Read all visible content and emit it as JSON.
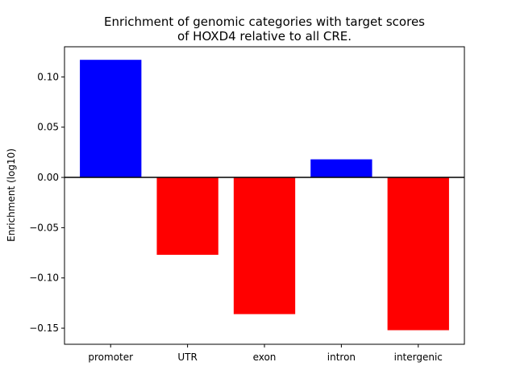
{
  "chart_data": {
    "type": "bar",
    "title_lines": [
      "Enrichment of genomic categories with target scores",
      "of HOXD4 relative to all CRE."
    ],
    "xlabel": "",
    "ylabel": "Enrichment (log10)",
    "categories": [
      "promoter",
      "UTR",
      "exon",
      "intron",
      "intergenic"
    ],
    "values": [
      0.117,
      -0.077,
      -0.136,
      0.018,
      -0.152
    ],
    "ylim": [
      -0.166,
      0.13
    ],
    "yticks": [
      0.1,
      0.05,
      0.0,
      -0.05,
      -0.1,
      -0.15
    ],
    "ytick_labels": [
      "0.10",
      "0.05",
      "0.00",
      "−0.05",
      "−0.10",
      "−0.15"
    ],
    "grid": false,
    "zero_line": true,
    "colors": {
      "positive": "#0000ff",
      "negative": "#ff0000",
      "axis": "#000000"
    }
  }
}
